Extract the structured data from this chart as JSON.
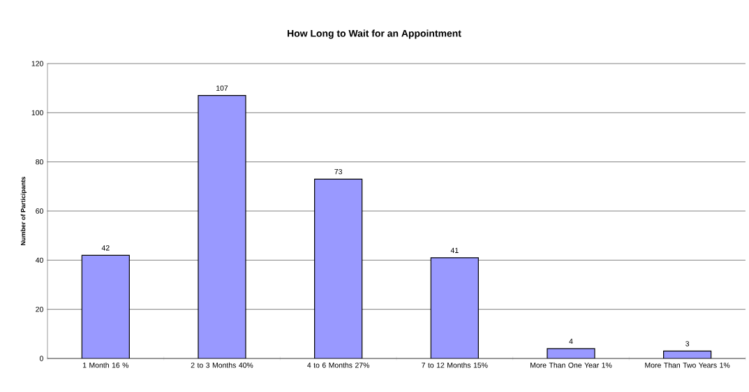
{
  "chart_data": {
    "type": "bar",
    "title": "How Long to Wait for an Appointment",
    "ylabel": "Number of Participants",
    "categories": [
      "1 Month 16 %",
      "2 to 3 Months 40%",
      "4 to 6 Months 27%",
      "7 to 12 Months 15%",
      "More Than One Year 1%",
      "More Than Two Years 1%"
    ],
    "values": [
      42,
      107,
      73,
      41,
      4,
      3
    ],
    "color": "#9999ff",
    "ylim": [
      0,
      120
    ],
    "yticks": [
      0,
      20,
      40,
      60,
      80,
      100,
      120
    ],
    "grid": "y",
    "data_labels": true
  }
}
